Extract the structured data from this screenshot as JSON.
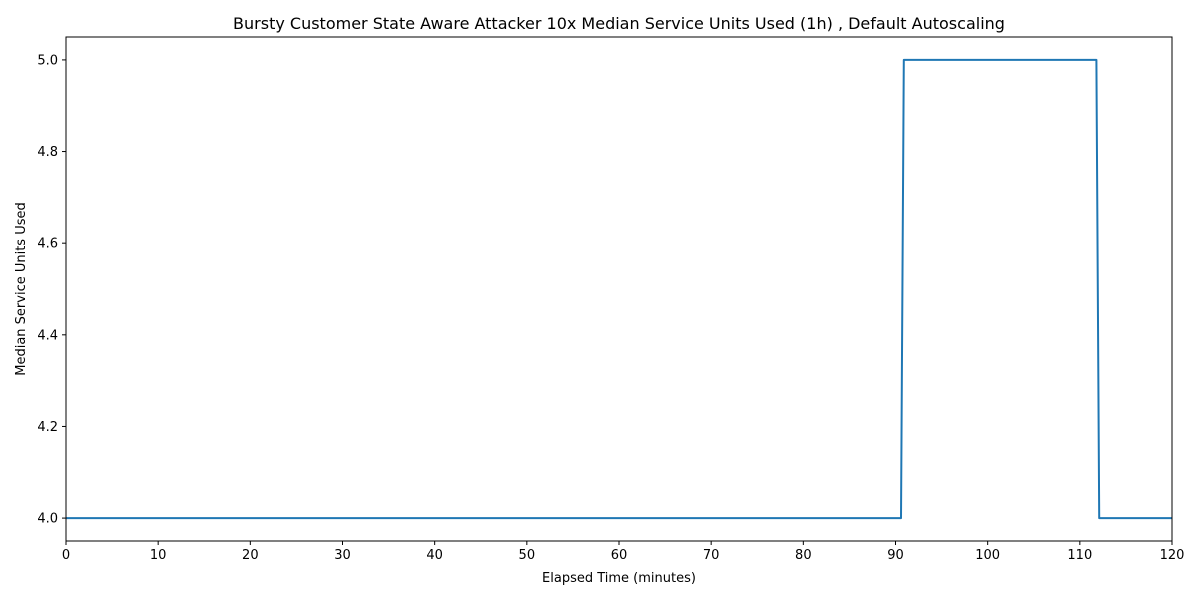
{
  "chart_data": {
    "type": "line",
    "title": "Bursty Customer State Aware Attacker 10x Median Service Units Used (1h) , Default Autoscaling",
    "xlabel": "Elapsed Time (minutes)",
    "ylabel": "Median Service Units Used",
    "xlim": [
      0,
      120
    ],
    "ylim": [
      3.95,
      5.05
    ],
    "x_ticks": [
      0,
      10,
      20,
      30,
      40,
      50,
      60,
      70,
      80,
      90,
      100,
      110,
      120
    ],
    "y_ticks": [
      4.0,
      4.2,
      4.4,
      4.6,
      4.8,
      5.0
    ],
    "y_tick_labels": [
      "4.0",
      "4.2",
      "4.4",
      "4.6",
      "4.8",
      "5.0"
    ],
    "grid": false,
    "series": [
      {
        "color": "#1f77b4",
        "x": [
          0,
          90.6,
          90.9,
          111.8,
          112.1,
          120
        ],
        "y": [
          4.0,
          4.0,
          5.0,
          5.0,
          4.0,
          4.0
        ]
      }
    ]
  }
}
